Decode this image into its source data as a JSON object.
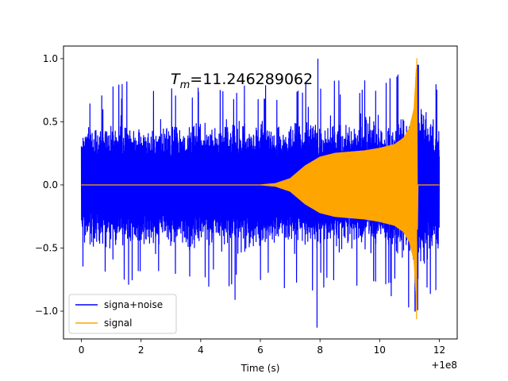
{
  "chart_data": {
    "type": "line",
    "title": "",
    "xlabel": "Time (s)",
    "ylabel": "",
    "x_offset_label": "+1e8",
    "xlim": [
      -0.6,
      12.6
    ],
    "ylim": [
      -1.22,
      1.1
    ],
    "xticks": [
      0,
      2,
      4,
      6,
      8,
      10,
      12
    ],
    "yticks": [
      -1.0,
      -0.5,
      0.0,
      0.5,
      1.0
    ],
    "annotation": {
      "prefix": "T",
      "subscript": "m",
      "value": "=11.246289062",
      "x": 3.0,
      "y": 0.79
    },
    "series": [
      {
        "name": "signa+noise",
        "color": "#0000ff",
        "x_range": [
          0,
          12.0
        ],
        "noise_envelope": [
          [
            0,
            0.55
          ],
          [
            1,
            0.62
          ],
          [
            3,
            0.6
          ],
          [
            6,
            0.6
          ],
          [
            7.5,
            0.62
          ],
          [
            9,
            0.62
          ],
          [
            10.5,
            0.66
          ],
          [
            11.0,
            0.72
          ],
          [
            11.3,
            0.82
          ],
          [
            12.0,
            0.6
          ]
        ],
        "notable_extremes": [
          {
            "x": 7.93,
            "y": 1.0
          },
          {
            "x": 7.9,
            "y": -1.13
          },
          {
            "x": 5.15,
            "y": -0.91
          },
          {
            "x": 11.3,
            "y": 0.95
          }
        ]
      },
      {
        "name": "signal",
        "color": "#ffa500",
        "x_range": [
          0,
          12.0
        ],
        "merger_time": 11.246289062,
        "peak_max": 1.0,
        "peak_min": -1.06,
        "amplitude_envelope": [
          [
            0,
            0.0
          ],
          [
            6.0,
            0.0
          ],
          [
            6.5,
            0.01
          ],
          [
            7.0,
            0.05
          ],
          [
            7.5,
            0.15
          ],
          [
            8.0,
            0.22
          ],
          [
            8.5,
            0.25
          ],
          [
            9.0,
            0.26
          ],
          [
            9.5,
            0.27
          ],
          [
            10.0,
            0.29
          ],
          [
            10.5,
            0.32
          ],
          [
            10.8,
            0.37
          ],
          [
            11.0,
            0.45
          ],
          [
            11.15,
            0.6
          ],
          [
            11.246,
            1.0
          ]
        ]
      }
    ],
    "legend_position": "lower-left"
  }
}
